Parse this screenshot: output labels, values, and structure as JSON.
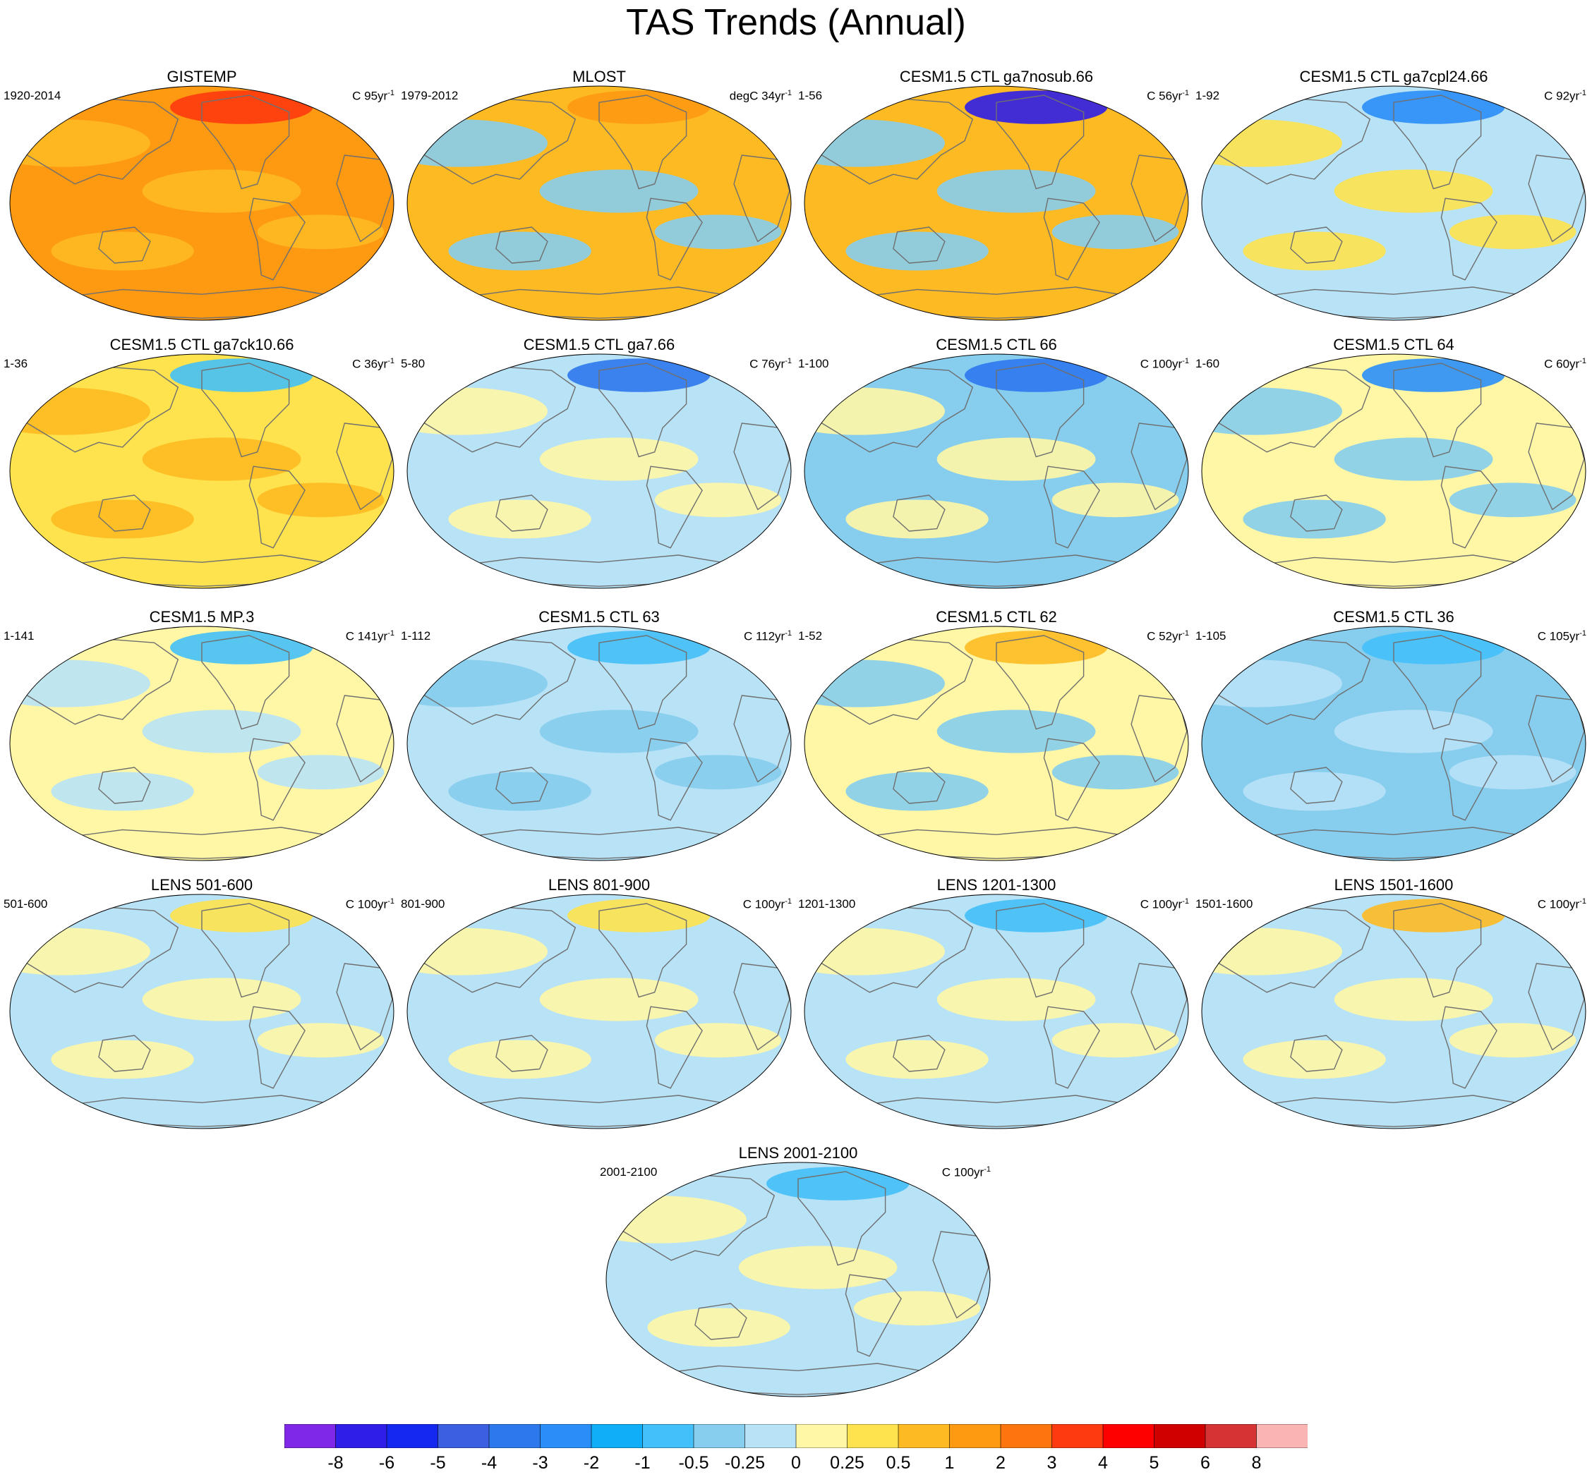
{
  "figure": {
    "title": "TAS Trends (Annual)"
  },
  "colors": {
    "scale": [
      "#7f28e8",
      "#2e1ee8",
      "#1428f0",
      "#3c5ee0",
      "#2e78ee",
      "#2a8ef8",
      "#10aef8",
      "#44c0f8",
      "#86cdee",
      "#b8e2f6",
      "#fff7a6",
      "#fee34e",
      "#feba22",
      "#fe9912",
      "#fe7510",
      "#fe3a10",
      "#fe0000",
      "#cf0000",
      "#d63434",
      "#fbb4b4"
    ],
    "land_outline": "#6f6f6f",
    "missing": "#ffffff"
  },
  "panels": [
    {
      "title": "GISTEMP",
      "left": "1920-2014",
      "units": "C 95yr",
      "sup": "-1",
      "dominant": "#fe9912",
      "secondary": "#feba22",
      "accent": "#fe3a10"
    },
    {
      "title": "MLOST",
      "left": "1979-2012",
      "units": "degC 34yr",
      "sup": "-1",
      "dominant": "#feba22",
      "secondary": "#86cdee",
      "accent": "#fe9912"
    },
    {
      "title": "CESM1.5 CTL ga7nosub.66",
      "left": "1-56",
      "units": "C 56yr",
      "sup": "-1",
      "dominant": "#feba22",
      "secondary": "#86cdee",
      "accent": "#2e1ee8"
    },
    {
      "title": "CESM1.5 CTL ga7cpl24.66",
      "left": "1-92",
      "units": "C 92yr",
      "sup": "-1",
      "dominant": "#b8e2f6",
      "secondary": "#fee34e",
      "accent": "#2a8ef8"
    },
    {
      "title": "CESM1.5 CTL ga7ck10.66",
      "left": "1-36",
      "units": "C 36yr",
      "sup": "-1",
      "dominant": "#fee34e",
      "secondary": "#feba22",
      "accent": "#44c0f8"
    },
    {
      "title": "CESM1.5 CTL ga7.66",
      "left": "5-80",
      "units": "C 76yr",
      "sup": "-1",
      "dominant": "#b8e2f6",
      "secondary": "#fff7a6",
      "accent": "#2e78ee"
    },
    {
      "title": "CESM1.5 CTL 66",
      "left": "1-100",
      "units": "C 100yr",
      "sup": "-1",
      "dominant": "#86cdee",
      "secondary": "#fff7a6",
      "accent": "#2e78ee"
    },
    {
      "title": "CESM1.5 CTL 64",
      "left": "1-60",
      "units": "C 60yr",
      "sup": "-1",
      "dominant": "#fff7a6",
      "secondary": "#86cdee",
      "accent": "#2a8ef8"
    },
    {
      "title": "CESM1.5 MP.3",
      "left": "1-141",
      "units": "C 141yr",
      "sup": "-1",
      "dominant": "#fff7a6",
      "secondary": "#b8e2f6",
      "accent": "#44c0f8"
    },
    {
      "title": "CESM1.5 CTL 63",
      "left": "1-112",
      "units": "C 112yr",
      "sup": "-1",
      "dominant": "#b8e2f6",
      "secondary": "#86cdee",
      "accent": "#44c0f8"
    },
    {
      "title": "CESM1.5 CTL 62",
      "left": "1-52",
      "units": "C 52yr",
      "sup": "-1",
      "dominant": "#fff7a6",
      "secondary": "#86cdee",
      "accent": "#feba22"
    },
    {
      "title": "CESM1.5 CTL 36",
      "left": "1-105",
      "units": "C 105yr",
      "sup": "-1",
      "dominant": "#86cdee",
      "secondary": "#b8e2f6",
      "accent": "#44c0f8"
    },
    {
      "title": "LENS 501-600",
      "left": "501-600",
      "units": "C 100yr",
      "sup": "-1",
      "dominant": "#b8e2f6",
      "secondary": "#fff7a6",
      "accent": "#fee34e"
    },
    {
      "title": "LENS 801-900",
      "left": "801-900",
      "units": "C 100yr",
      "sup": "-1",
      "dominant": "#b8e2f6",
      "secondary": "#fff7a6",
      "accent": "#fee34e"
    },
    {
      "title": "LENS 1201-1300",
      "left": "1201-1300",
      "units": "C 100yr",
      "sup": "-1",
      "dominant": "#b8e2f6",
      "secondary": "#fff7a6",
      "accent": "#44c0f8"
    },
    {
      "title": "LENS 1501-1600",
      "left": "1501-1600",
      "units": "C 100yr",
      "sup": "-1",
      "dominant": "#b8e2f6",
      "secondary": "#fff7a6",
      "accent": "#feba22"
    },
    {
      "title": "LENS 2001-2100",
      "left": "2001-2100",
      "units": "C 100yr",
      "sup": "-1",
      "dominant": "#b8e2f6",
      "secondary": "#fff7a6",
      "accent": "#44c0f8"
    }
  ],
  "colorbar": {
    "labels": [
      "-8",
      "-6",
      "-5",
      "-4",
      "-3",
      "-2",
      "-1",
      "-0.5",
      "-0.25",
      "0",
      "0.25",
      "0.5",
      "1",
      "2",
      "3",
      "4",
      "5",
      "6",
      "8"
    ]
  }
}
